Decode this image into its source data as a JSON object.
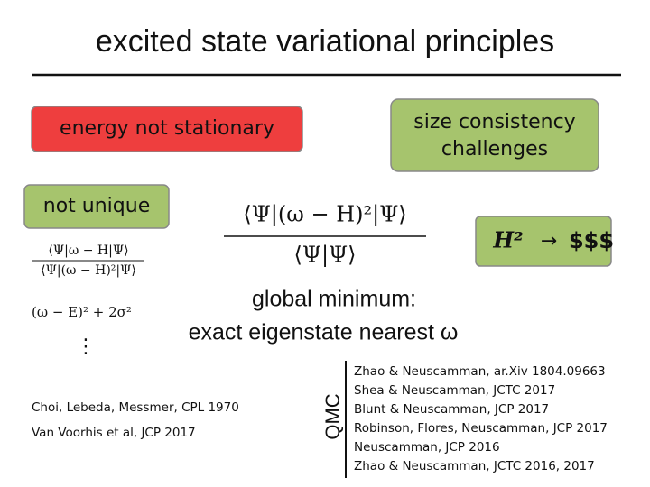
{
  "slide": {
    "title": "excited state variational principles",
    "boxes": {
      "energy": "energy not stationary",
      "size": [
        "size consistency",
        "challenges"
      ],
      "unique": "not unique",
      "cost": {
        "lhs": "H²",
        "arrow": "→",
        "rhs": "$$$"
      }
    },
    "main_formula": {
      "numerator": "⟨Ψ|(ω − H)²|Ψ⟩",
      "denominator": "⟨Ψ|Ψ⟩"
    },
    "side_formulas": {
      "ratio": {
        "numerator": "⟨Ψ|ω − H|Ψ⟩",
        "denominator": "⟨Ψ|(ω − H)²|Ψ⟩"
      },
      "variance": "(ω − E)² + 2σ²",
      "more": "⋮"
    },
    "global": [
      "global minimum:",
      "exact eigenstate nearest ω"
    ],
    "left_refs": [
      "Choi, Lebeda, Messmer, CPL 1970",
      "Van Voorhis et al, JCP 2017"
    ],
    "qmc_label": "QMC",
    "qmc_refs": [
      "Zhao & Neuscamman, ar.Xiv 1804.09663",
      "Shea & Neuscamman, JCTC 2017",
      "Blunt & Neuscamman, JCP 2017",
      "Robinson, Flores, Neuscamman, JCP 2017",
      "Neuscamman, JCP 2016",
      "Zhao & Neuscamman, JCTC 2016, 2017"
    ]
  }
}
